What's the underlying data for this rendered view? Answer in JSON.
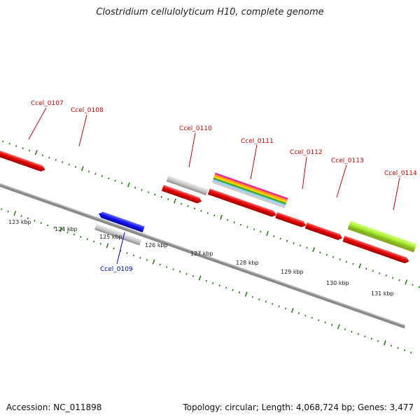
{
  "title": "Clostridium cellulolyticum H10, complete genome",
  "accession": "Accession: NC_011898",
  "summary": "Topology: circular; Length: 4,068,724 bp; Genes: 3,477",
  "colors": {
    "forward_label": "#cc0000",
    "reverse_label": "#0000cc",
    "tick": "#2e7d1e",
    "backbone": "#888888"
  },
  "gene_labels": [
    {
      "id": "Ccel_0107",
      "strand": "forward"
    },
    {
      "id": "Ccel_0108",
      "strand": "forward"
    },
    {
      "id": "Ccel_0110",
      "strand": "forward"
    },
    {
      "id": "Ccel_0111",
      "strand": "forward"
    },
    {
      "id": "Ccel_0112",
      "strand": "forward"
    },
    {
      "id": "Ccel_0113",
      "strand": "forward"
    },
    {
      "id": "Ccel_0114",
      "strand": "forward"
    },
    {
      "id": "Ccel_0109",
      "strand": "reverse"
    }
  ],
  "kbp_labels": [
    "123 kbp",
    "124 kbp",
    "125 kbp",
    "126 kbp",
    "127 kbp",
    "128 kbp",
    "129 kbp",
    "130 kbp",
    "131 kbp"
  ]
}
